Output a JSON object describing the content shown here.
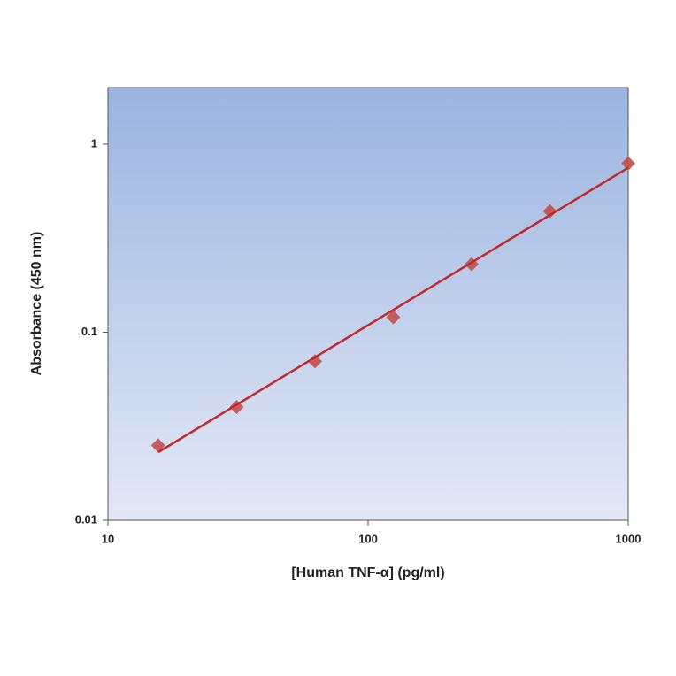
{
  "chart_data": {
    "type": "scatter",
    "x_label": "[Human TNF-α] (pg/ml)",
    "y_label": "Absorbance (450 nm)",
    "xscale": "log",
    "yscale": "log",
    "xlim": [
      10,
      1000
    ],
    "ylim": [
      0.01,
      2
    ],
    "xticks": [
      10,
      100,
      1000
    ],
    "yticks": [
      0.01,
      0.1,
      1
    ],
    "series": [
      {
        "color": "#c0504d",
        "marker": "diamond",
        "x": [
          15.6,
          31.25,
          62.5,
          125,
          250,
          500,
          1000
        ],
        "values": [
          0.025,
          0.04,
          0.07,
          0.12,
          0.23,
          0.44,
          0.79
        ]
      },
      {
        "color": "#c0282a",
        "marker": "line",
        "x": [
          15.6,
          1000
        ],
        "values": [
          0.023,
          0.75
        ]
      }
    ]
  }
}
